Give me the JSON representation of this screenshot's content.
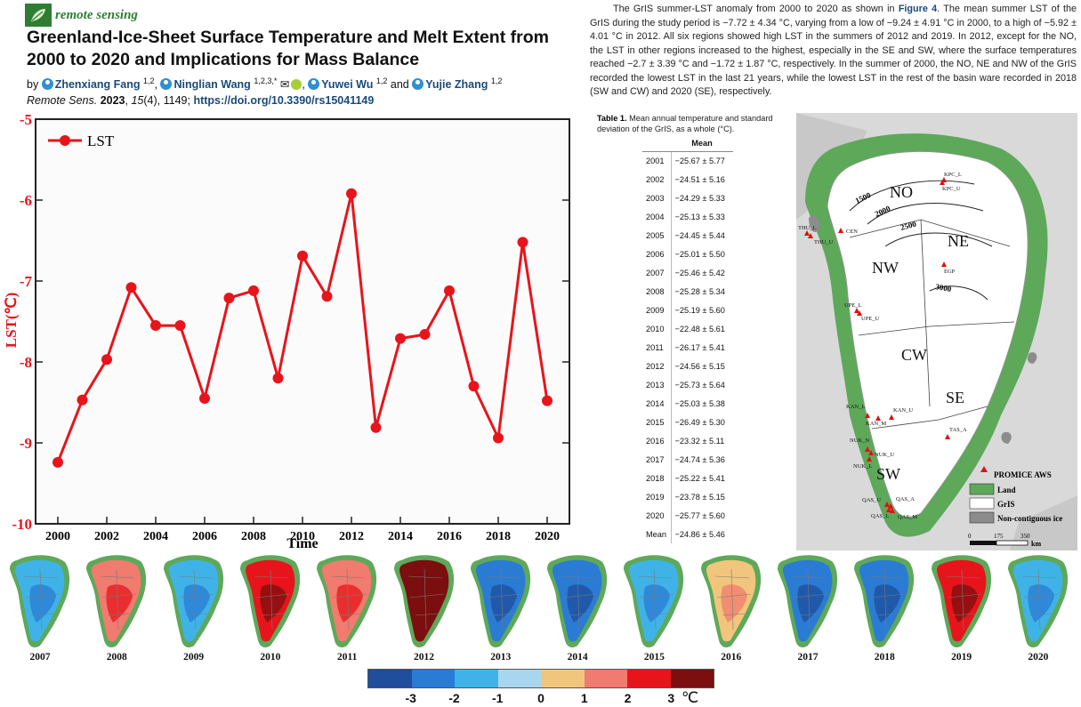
{
  "header": {
    "journal_name": "remote sensing",
    "title": "Greenland-Ice-Sheet Surface Temperature and Melt Extent from 2000 to 2020 and Implications for Mass Balance",
    "by_label": "by",
    "authors": [
      {
        "name": "Zhenxiang Fang",
        "affil": "1,2"
      },
      {
        "name": "Ninglian Wang",
        "affil": "1,2,3,*"
      },
      {
        "name": "Yuwei Wu",
        "affil": "1,2"
      },
      {
        "name": "Yujie Zhang",
        "affil": "1,2"
      }
    ],
    "and_label": "and",
    "citation": {
      "journal": "Remote Sens.",
      "year": "2023",
      "volume": "15",
      "issue": "(4)",
      "pages": "1149",
      "doi": "https://doi.org/10.3390/rs15041149"
    }
  },
  "paragraph": {
    "part1": "The GrIS summer-LST anomaly from 2000 to 2020 as shown in ",
    "figure_ref": "Figure 4",
    "part2": ". The mean summer LST of the GrIS during the study period is −7.72 ± 4.34 °C, varying from a low of −9.24 ± 4.91 °C in 2000, to a high of −5.92 ± 4.01 °C in 2012. All six regions showed high LST in the summers of 2012 and 2019. In 2012, except for the NO, the LST in other regions increased to the highest, especially in the SE and SW, where the surface temperatures reached −2.7 ± 3.39 °C and −1.72 ± 1.87 °C, respectively. In the summer of 2000, the NO, NE and NW of the GrIS recorded the lowest LST in the last 21 years, while the lowest LST in the rest of the basin ware recorded in 2018 (SW and CW) and 2020 (SE), respectively."
  },
  "chart_data": {
    "type": "line",
    "title": "",
    "legend": "LST",
    "xlabel": "Time",
    "ylabel": "LST(℃)",
    "x": [
      2000,
      2001,
      2002,
      2003,
      2004,
      2005,
      2006,
      2007,
      2008,
      2009,
      2010,
      2011,
      2012,
      2013,
      2014,
      2015,
      2016,
      2017,
      2018,
      2019,
      2020
    ],
    "values": [
      -9.24,
      -8.47,
      -7.97,
      -7.08,
      -7.55,
      -7.55,
      -8.45,
      -7.21,
      -7.12,
      -8.2,
      -6.69,
      -7.19,
      -5.92,
      -8.81,
      -7.71,
      -7.66,
      -7.12,
      -8.3,
      -8.94,
      -6.52,
      -8.48
    ],
    "ylim": [
      -10,
      -5
    ],
    "yticks": [
      "-5",
      "-6",
      "-7",
      "-8",
      "-9",
      "-10"
    ],
    "xticks": [
      "2000",
      "2002",
      "2004",
      "2006",
      "2008",
      "2010",
      "2012",
      "2014",
      "2016",
      "2018",
      "2020"
    ],
    "line_color": "#e8141b"
  },
  "table": {
    "caption_label": "Table 1.",
    "caption_text": "Mean annual temperature and standard deviation of the GrIS, as a whole (°C).",
    "header": "Mean",
    "rows": [
      {
        "year": "2001",
        "mean": "−25.67 ± 5.77"
      },
      {
        "year": "2002",
        "mean": "−24.51 ± 5.16"
      },
      {
        "year": "2003",
        "mean": "−24.29 ± 5.33"
      },
      {
        "year": "2004",
        "mean": "−25.13 ± 5.33"
      },
      {
        "year": "2005",
        "mean": "−24.45 ± 5.44"
      },
      {
        "year": "2006",
        "mean": "−25.01 ± 5.50"
      },
      {
        "year": "2007",
        "mean": "−25.46 ± 5.42"
      },
      {
        "year": "2008",
        "mean": "−25.28 ± 5.34"
      },
      {
        "year": "2009",
        "mean": "−25.19 ± 5.60"
      },
      {
        "year": "2010",
        "mean": "−22.48 ± 5.61"
      },
      {
        "year": "2011",
        "mean": "−26.17 ± 5.41"
      },
      {
        "year": "2012",
        "mean": "−24.56 ± 5.15"
      },
      {
        "year": "2013",
        "mean": "−25.73 ± 5.64"
      },
      {
        "year": "2014",
        "mean": "−25.03 ± 5.38"
      },
      {
        "year": "2015",
        "mean": "−26.49 ± 5.30"
      },
      {
        "year": "2016",
        "mean": "−23.32 ± 5.11"
      },
      {
        "year": "2017",
        "mean": "−24.74 ± 5.36"
      },
      {
        "year": "2018",
        "mean": "−25.22 ± 5.41"
      },
      {
        "year": "2019",
        "mean": "−23.78 ± 5.15"
      },
      {
        "year": "2020",
        "mean": "−25.77 ± 5.60"
      },
      {
        "year": "Mean",
        "mean": "−24.86 ± 5.46"
      }
    ]
  },
  "map": {
    "regions": [
      "NO",
      "NE",
      "NW",
      "CW",
      "SE",
      "SW"
    ],
    "contours": [
      "1500",
      "2000",
      "2500",
      "3000"
    ],
    "stations": [
      "KPC_L",
      "KPC_U",
      "THU_L",
      "THU_U",
      "CEN",
      "EGP",
      "UPE_L",
      "UPE_U",
      "KAN_L",
      "KAN_M",
      "KAN_U",
      "TAS_A",
      "NUK_N",
      "NUK_U",
      "NUK_L",
      "QAS_U",
      "QAS_A",
      "QAS_L",
      "QAS_M"
    ],
    "legend": {
      "aws": "PROMICE AWS",
      "land": "Land",
      "gris": "GrIS",
      "noncontig": "Non-contiguous ice"
    },
    "scale": {
      "zero": "0",
      "mid": "175",
      "end": "350",
      "unit": "km"
    },
    "colors": {
      "land": "#5ea85a",
      "ocean": "#d9d9d9",
      "ice": "#ffffff",
      "noncontig": "#8c8c8c",
      "aws": "#e01010"
    }
  },
  "strip": {
    "years": [
      "2007",
      "2008",
      "2009",
      "2010",
      "2011",
      "2012",
      "2013",
      "2014",
      "2015",
      "2016",
      "2017",
      "2018",
      "2019",
      "2020"
    ],
    "anomaly_level": [
      0.3,
      0.75,
      0.35,
      0.85,
      0.7,
      1.0,
      0.1,
      0.2,
      0.25,
      0.6,
      0.15,
      0.12,
      0.8,
      0.3
    ]
  },
  "colorbar": {
    "colors": [
      "#1f4e9c",
      "#2a7bd4",
      "#3fb3e8",
      "#a9d6ef",
      "#f2c57c",
      "#f07b6e",
      "#e8141b",
      "#7b0f0f"
    ],
    "labels": [
      "-3",
      "-2",
      "-1",
      "0",
      "1",
      "2",
      "3"
    ],
    "unit": "℃"
  }
}
